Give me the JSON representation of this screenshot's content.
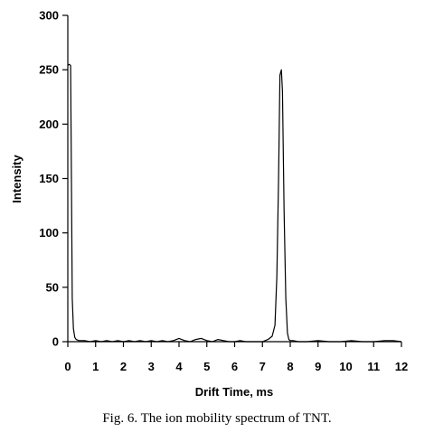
{
  "caption": "Fig. 6. The ion mobility spectrum of TNT.",
  "chart_data": {
    "type": "line",
    "title": "",
    "xlabel": "Drift Time, ms",
    "ylabel": "Intensity",
    "xlim": [
      0,
      12
    ],
    "ylim": [
      0,
      300
    ],
    "xticks": [
      0,
      1,
      2,
      3,
      4,
      5,
      6,
      7,
      8,
      9,
      10,
      11,
      12
    ],
    "yticks": [
      0,
      50,
      100,
      150,
      200,
      250,
      300
    ],
    "grid": false,
    "legend": "none",
    "series": [
      {
        "color": "#000000",
        "x": [
          0.0,
          0.05,
          0.1,
          0.13,
          0.16,
          0.2,
          0.25,
          0.3,
          0.4,
          0.6,
          0.8,
          1.0,
          1.2,
          1.4,
          1.6,
          1.8,
          2.0,
          2.2,
          2.4,
          2.6,
          2.8,
          3.0,
          3.2,
          3.4,
          3.6,
          3.8,
          4.0,
          4.2,
          4.4,
          4.6,
          4.8,
          5.0,
          5.2,
          5.4,
          5.6,
          5.8,
          6.0,
          6.2,
          6.4,
          6.6,
          6.8,
          7.0,
          7.2,
          7.35,
          7.45,
          7.52,
          7.58,
          7.63,
          7.68,
          7.72,
          7.78,
          7.84,
          7.9,
          7.95,
          8.0,
          8.1,
          8.3,
          8.6,
          9.0,
          9.4,
          9.8,
          10.2,
          10.6,
          11.0,
          11.4,
          11.7,
          12.0
        ],
        "y": [
          254,
          255,
          254,
          150,
          40,
          12,
          4,
          2,
          1,
          1,
          0,
          1,
          0,
          1,
          0,
          1,
          0,
          1,
          0,
          1,
          0,
          1,
          0,
          1,
          0,
          1,
          3,
          1,
          0,
          2,
          3,
          1,
          0,
          2,
          1,
          0,
          0,
          1,
          0,
          0,
          0,
          0,
          2,
          5,
          15,
          60,
          150,
          245,
          250,
          230,
          120,
          40,
          8,
          2,
          1,
          1,
          0,
          0,
          1,
          0,
          0,
          1,
          0,
          0,
          1,
          1,
          0
        ]
      }
    ]
  }
}
